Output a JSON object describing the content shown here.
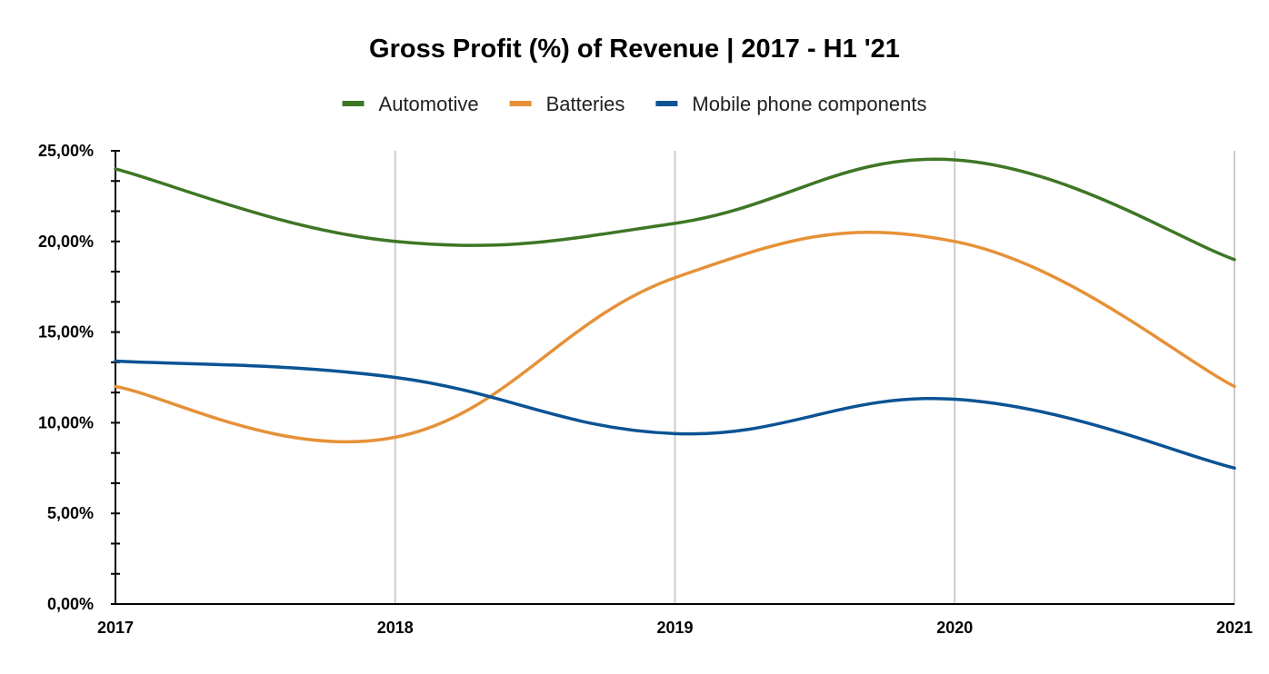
{
  "chart_data": {
    "type": "line",
    "title": "Gross Profit (%) of Revenue | 2017 - H1 '21",
    "xlabel": "",
    "ylabel": "",
    "categories": [
      "2017",
      "2018",
      "2019",
      "2020",
      "2021"
    ],
    "ylim": [
      0,
      25
    ],
    "y_ticks": [
      "0,00%",
      "5,00%",
      "10,00%",
      "15,00%",
      "20,00%",
      "25,00%"
    ],
    "grid": "vertical",
    "legend_position": "top",
    "series": [
      {
        "name": "Automotive",
        "color": "#3e7625",
        "values": [
          24.0,
          20.0,
          21.0,
          24.5,
          19.0
        ]
      },
      {
        "name": "Batteries",
        "color": "#e69138",
        "values": [
          12.0,
          9.2,
          18.0,
          20.0,
          12.0
        ]
      },
      {
        "name": "Mobile phone components",
        "color": "#0b5394",
        "values": [
          13.4,
          12.5,
          9.4,
          11.3,
          7.5
        ]
      }
    ]
  }
}
